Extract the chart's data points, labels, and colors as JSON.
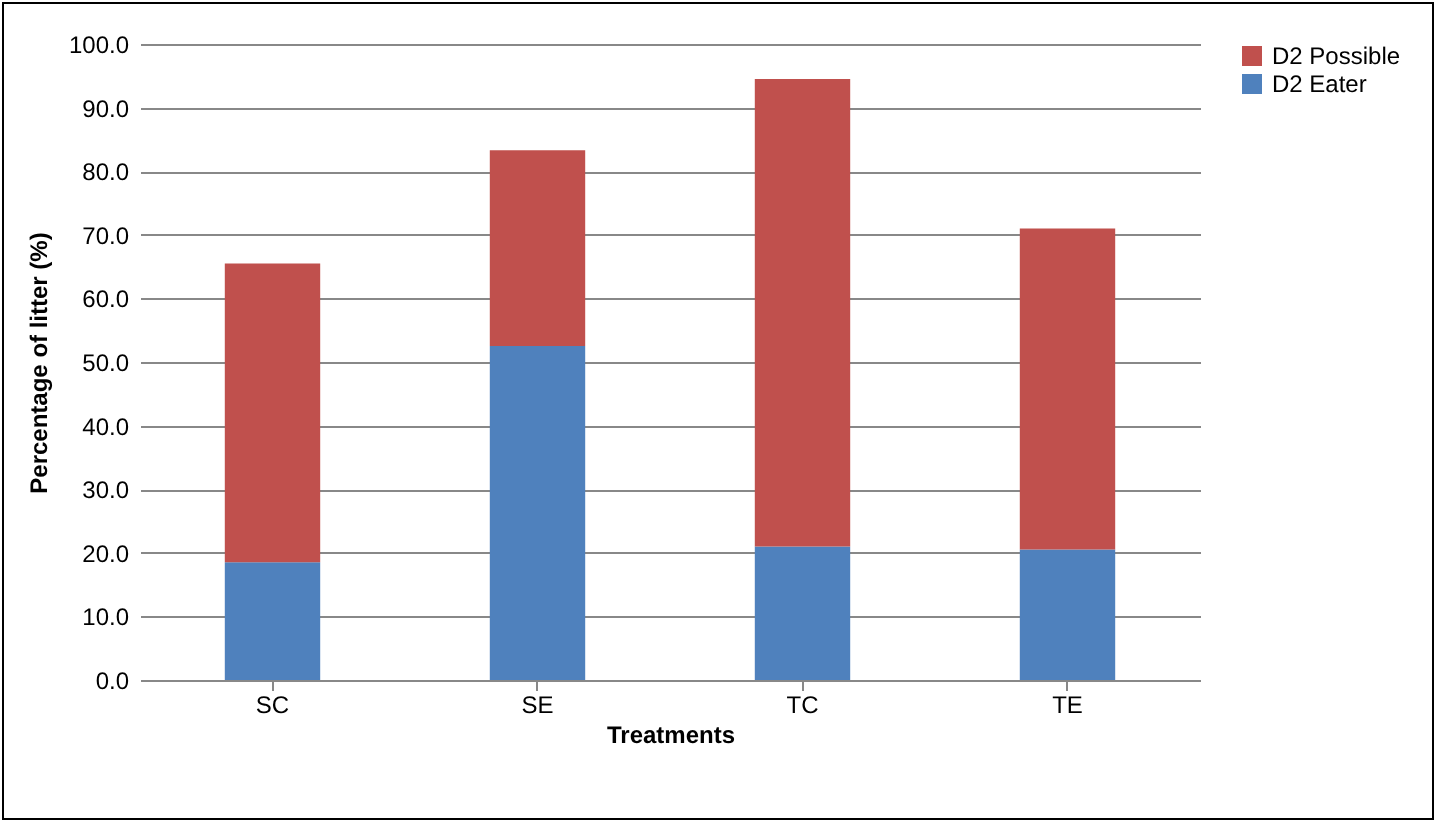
{
  "chart_data": {
    "type": "bar",
    "stacked": true,
    "xlabel": "Treatments",
    "ylabel": "Percentage of litter (%)",
    "categories": [
      "SC",
      "SE",
      "TC",
      "TE"
    ],
    "series": [
      {
        "name": "D2 Eater",
        "color": "#4f81bd",
        "values": [
          18.5,
          52.5,
          21.0,
          20.5
        ]
      },
      {
        "name": "D2 Possible",
        "color": "#c0504d",
        "values": [
          47.0,
          30.8,
          73.5,
          50.5
        ]
      }
    ],
    "ylim": [
      0,
      100
    ],
    "yticks": [
      {
        "value": 0,
        "label": "0.0"
      },
      {
        "value": 10,
        "label": "10.0"
      },
      {
        "value": 20,
        "label": "20.0"
      },
      {
        "value": 30,
        "label": "30.0"
      },
      {
        "value": 40,
        "label": "40.0"
      },
      {
        "value": 50,
        "label": "50.0"
      },
      {
        "value": 60,
        "label": "60.0"
      },
      {
        "value": 70,
        "label": "70.0"
      },
      {
        "value": 80,
        "label": "80.0"
      },
      {
        "value": 90,
        "label": "90.0"
      },
      {
        "value": 100,
        "label": "100.0"
      }
    ],
    "grid": "y",
    "legend": "right"
  }
}
